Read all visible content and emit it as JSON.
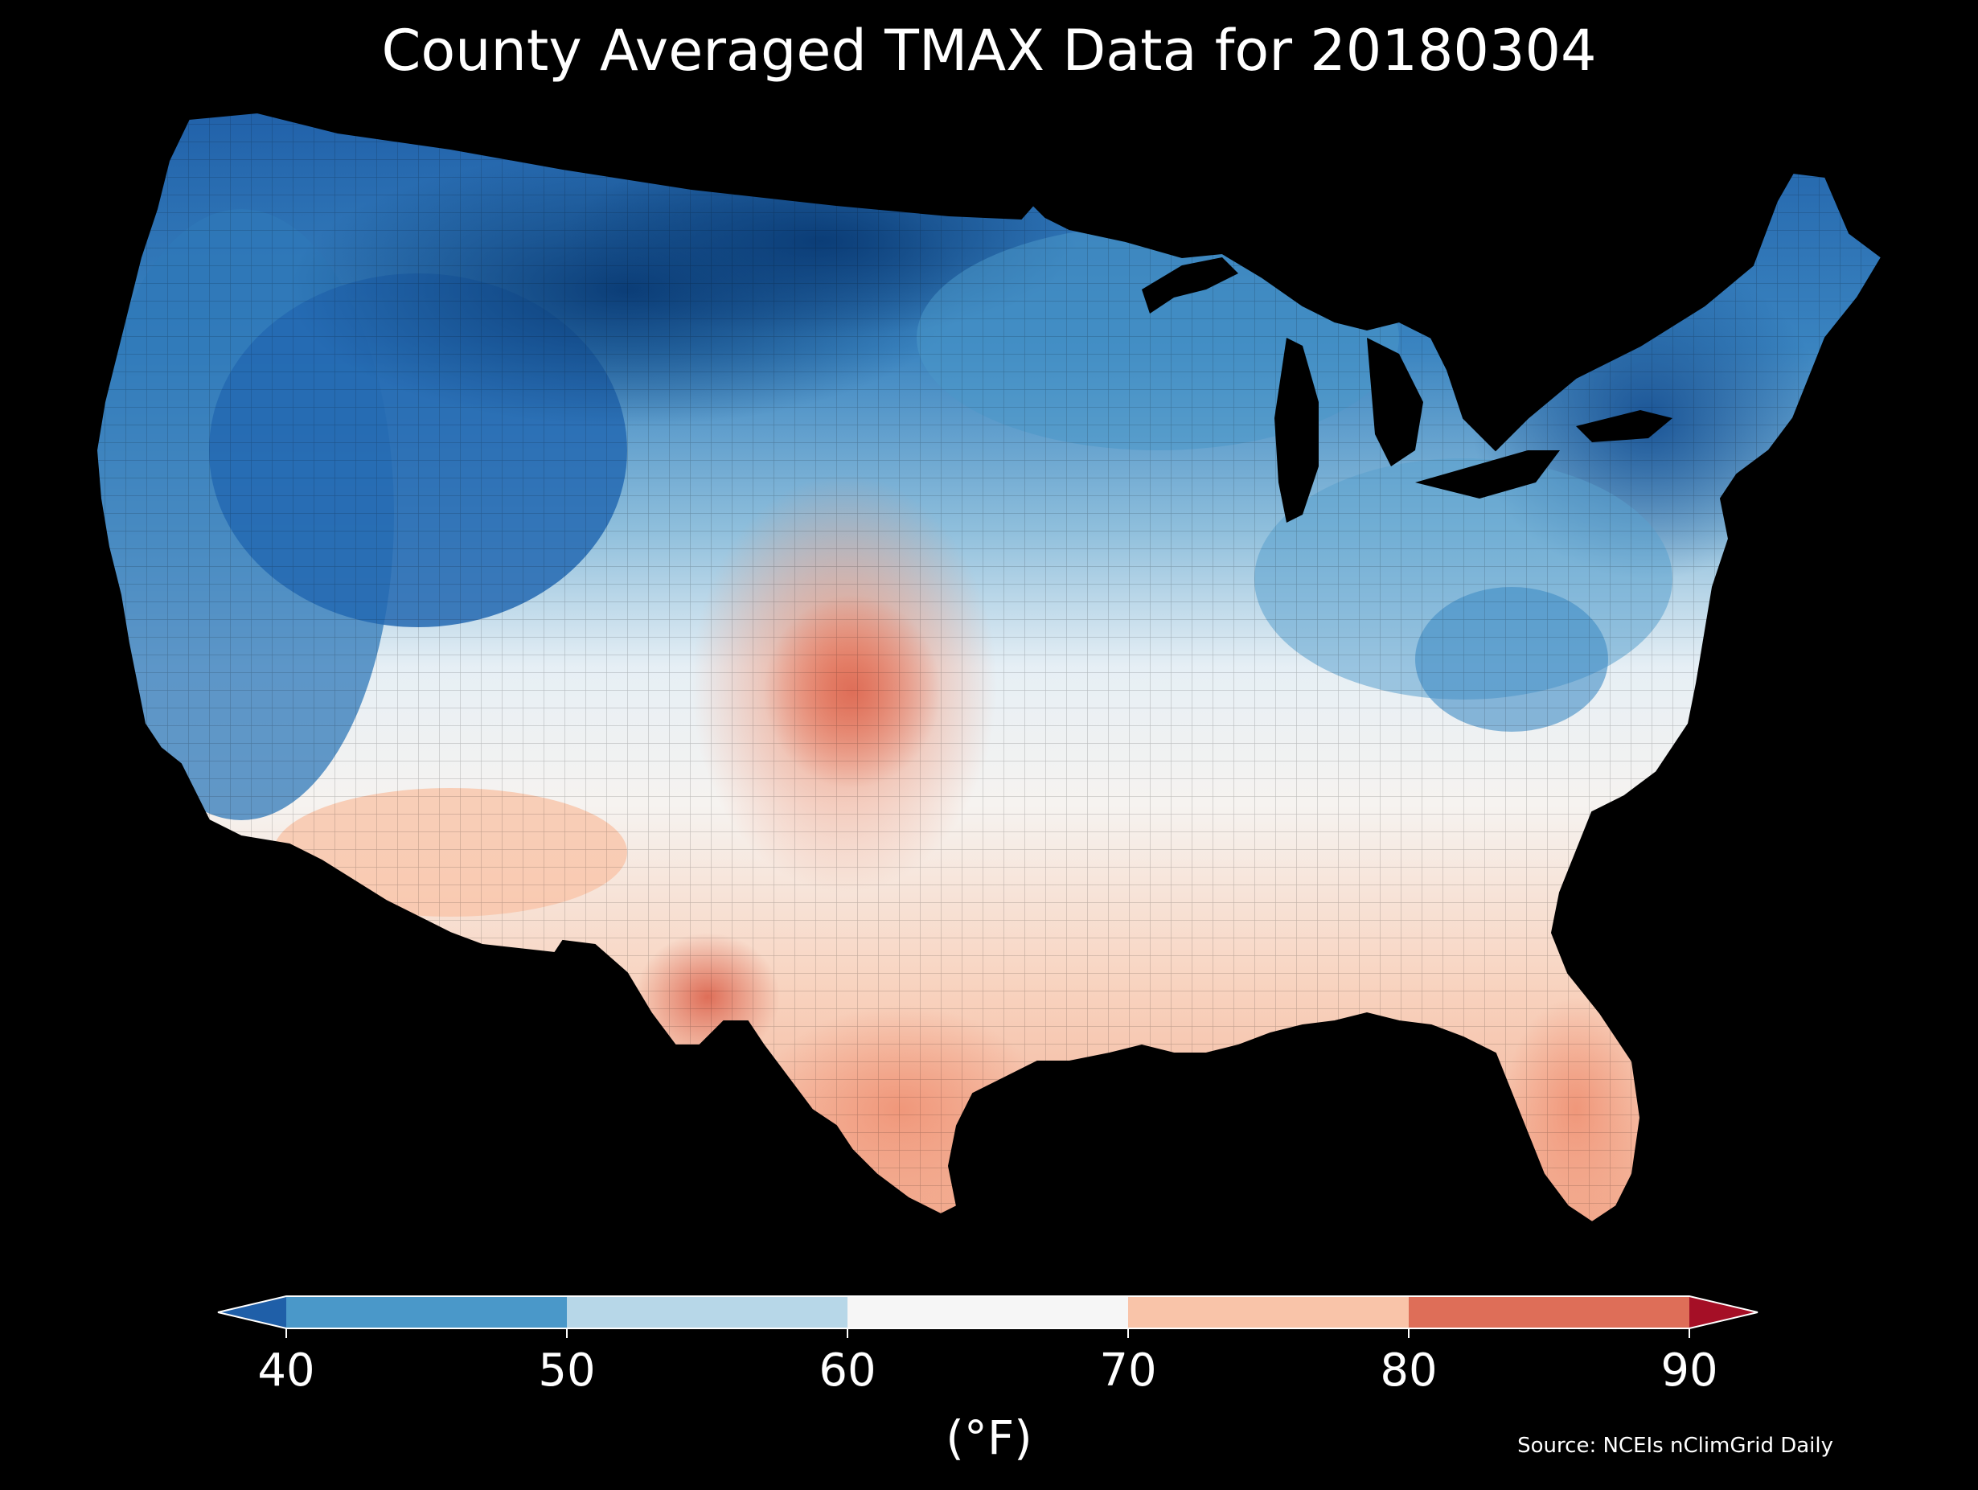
{
  "title": "County Averaged TMAX Data for 20180304",
  "colorbar": {
    "unit_label": "(°F)",
    "ticks": [
      "40",
      "50",
      "60",
      "70",
      "80",
      "90"
    ],
    "bins": [
      {
        "range": [
          40,
          50
        ],
        "color": "#4a98c9"
      },
      {
        "range": [
          50,
          60
        ],
        "color": "#b7d7e8"
      },
      {
        "range": [
          60,
          70
        ],
        "color": "#f6f6f6"
      },
      {
        "range": [
          70,
          80
        ],
        "color": "#f9c4a9"
      },
      {
        "range": [
          80,
          90
        ],
        "color": "#de6e58"
      }
    ],
    "under_color": "#1f5fa8",
    "over_color": "#a50f26"
  },
  "source": "Source: NCEIs nClimGrid Daily",
  "map": {
    "region": "contiguous-united-states",
    "background_color": "#000000",
    "palette": {
      "very_cold": "#0b3d77",
      "cold": "#2369b2",
      "cool": "#4a98c9",
      "mild_cool": "#b7d7e8",
      "neutral": "#f2f2f2",
      "mild_warm": "#f9c4a9",
      "warm": "#f0977a",
      "hot": "#de6e58"
    },
    "warm_region_label": "southern-plains-and-gulf-coast",
    "cold_region_label": "northern-rockies-and-northern-plains"
  }
}
